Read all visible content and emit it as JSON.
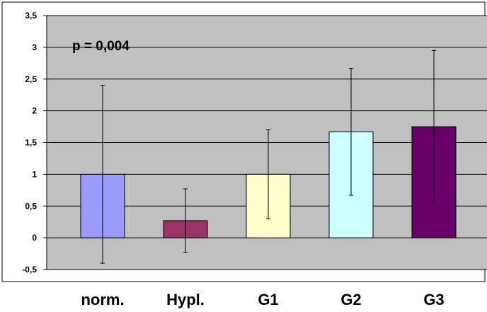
{
  "chart_data": {
    "type": "bar",
    "title": "",
    "xlabel": "",
    "ylabel": "",
    "annotation": "p = 0,004",
    "categories": [
      "norm.",
      "Hypl.",
      "G1",
      "G2",
      "G3"
    ],
    "series": [
      {
        "values": [
          1.0,
          0.27,
          1.0,
          1.67,
          1.75
        ],
        "error_low": [
          -0.4,
          -0.23,
          0.3,
          0.67,
          0.55
        ],
        "error_high": [
          2.4,
          0.77,
          1.7,
          2.67,
          2.95
        ],
        "colors": [
          "#9999ff",
          "#993366",
          "#ffffcc",
          "#ccffff",
          "#660066"
        ]
      }
    ],
    "ylim": [
      -0.5,
      3.5
    ],
    "yticks": [
      -0.5,
      0,
      0.5,
      1,
      1.5,
      2,
      2.5,
      3,
      3.5
    ],
    "ytick_labels": [
      "-0,5",
      "0",
      "0,5",
      "1",
      "1,5",
      "2",
      "2,5",
      "3",
      "3,5"
    ],
    "grid": true,
    "plot_background": "#c0c0c0",
    "legend": "none"
  }
}
